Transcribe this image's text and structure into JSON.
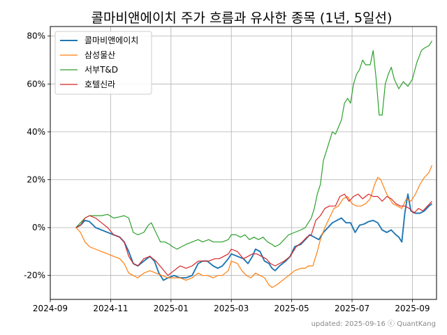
{
  "chart_data": {
    "type": "line",
    "title": "콜마비앤에이치 주가 흐름과 유사한 종목 (1년, 5일선)",
    "xlabel": "",
    "ylabel": "",
    "x_ticks": [
      "2024-09",
      "2024-11",
      "2025-01",
      "2025-03",
      "2025-05",
      "2025-07",
      "2025-09"
    ],
    "y_ticks": [
      "-20%",
      "0%",
      "20%",
      "40%",
      "60%",
      "80%"
    ],
    "ylim": [
      -30,
      84
    ],
    "xlim": [
      0,
      12.8
    ],
    "grid": true,
    "legend_position": "upper-left",
    "series": [
      {
        "name": "콜마비앤에이치",
        "color": "#1f77b4",
        "points": [
          [
            0.85,
            0
          ],
          [
            1.0,
            1
          ],
          [
            1.15,
            3
          ],
          [
            1.3,
            2.5
          ],
          [
            1.5,
            0
          ],
          [
            1.7,
            -1
          ],
          [
            1.9,
            -2
          ],
          [
            2.1,
            -3
          ],
          [
            2.3,
            -4
          ],
          [
            2.45,
            -6
          ],
          [
            2.6,
            -10
          ],
          [
            2.75,
            -15
          ],
          [
            2.9,
            -16
          ],
          [
            3.1,
            -14
          ],
          [
            3.3,
            -12
          ],
          [
            3.45,
            -14
          ],
          [
            3.6,
            -19
          ],
          [
            3.75,
            -22
          ],
          [
            3.9,
            -21
          ],
          [
            4.1,
            -20
          ],
          [
            4.3,
            -21
          ],
          [
            4.5,
            -21
          ],
          [
            4.7,
            -20
          ],
          [
            4.9,
            -15
          ],
          [
            5.05,
            -14
          ],
          [
            5.2,
            -14
          ],
          [
            5.4,
            -16
          ],
          [
            5.55,
            -17
          ],
          [
            5.7,
            -16
          ],
          [
            5.9,
            -13
          ],
          [
            6.0,
            -11
          ],
          [
            6.2,
            -12
          ],
          [
            6.4,
            -13
          ],
          [
            6.55,
            -15
          ],
          [
            6.7,
            -12
          ],
          [
            6.8,
            -9
          ],
          [
            6.95,
            -10
          ],
          [
            7.1,
            -14
          ],
          [
            7.25,
            -15
          ],
          [
            7.35,
            -17
          ],
          [
            7.45,
            -18
          ],
          [
            7.6,
            -16
          ],
          [
            7.8,
            -14
          ],
          [
            7.95,
            -12
          ],
          [
            8.1,
            -8
          ],
          [
            8.3,
            -7
          ],
          [
            8.45,
            -5
          ],
          [
            8.6,
            -3
          ],
          [
            8.75,
            -4
          ],
          [
            8.9,
            -5
          ],
          [
            9.05,
            -2
          ],
          [
            9.2,
            0
          ],
          [
            9.35,
            2
          ],
          [
            9.5,
            3
          ],
          [
            9.65,
            4
          ],
          [
            9.8,
            2
          ],
          [
            9.95,
            2
          ],
          [
            10.1,
            -2
          ],
          [
            10.25,
            1
          ],
          [
            10.4,
            1.5
          ],
          [
            10.55,
            2.5
          ],
          [
            10.7,
            3
          ],
          [
            10.85,
            2
          ],
          [
            11.0,
            -1
          ],
          [
            11.15,
            -2
          ],
          [
            11.3,
            -1
          ],
          [
            11.45,
            -3
          ],
          [
            11.55,
            -4
          ],
          [
            11.65,
            -6
          ],
          [
            11.75,
            6
          ],
          [
            11.85,
            14
          ],
          [
            11.95,
            7
          ],
          [
            12.1,
            6
          ],
          [
            12.25,
            6
          ],
          [
            12.4,
            7
          ],
          [
            12.55,
            9
          ],
          [
            12.65,
            10
          ]
        ]
      },
      {
        "name": "삼성물산",
        "color": "#ff7f0e",
        "points": [
          [
            0.85,
            0
          ],
          [
            1.0,
            -2
          ],
          [
            1.15,
            -6
          ],
          [
            1.3,
            -8
          ],
          [
            1.5,
            -9
          ],
          [
            1.7,
            -10
          ],
          [
            1.9,
            -11
          ],
          [
            2.1,
            -12
          ],
          [
            2.3,
            -13
          ],
          [
            2.45,
            -15
          ],
          [
            2.6,
            -19
          ],
          [
            2.75,
            -20
          ],
          [
            2.9,
            -21
          ],
          [
            3.1,
            -19
          ],
          [
            3.3,
            -18
          ],
          [
            3.5,
            -19
          ],
          [
            3.7,
            -20
          ],
          [
            3.9,
            -21
          ],
          [
            4.1,
            -21
          ],
          [
            4.3,
            -21
          ],
          [
            4.5,
            -22
          ],
          [
            4.7,
            -21
          ],
          [
            4.9,
            -19
          ],
          [
            5.05,
            -20
          ],
          [
            5.2,
            -20
          ],
          [
            5.4,
            -21
          ],
          [
            5.55,
            -20
          ],
          [
            5.7,
            -20
          ],
          [
            5.9,
            -18
          ],
          [
            6.0,
            -14
          ],
          [
            6.2,
            -15
          ],
          [
            6.35,
            -18
          ],
          [
            6.5,
            -20
          ],
          [
            6.65,
            -21
          ],
          [
            6.8,
            -19
          ],
          [
            6.95,
            -20
          ],
          [
            7.1,
            -21
          ],
          [
            7.25,
            -24
          ],
          [
            7.35,
            -25
          ],
          [
            7.5,
            -24
          ],
          [
            7.7,
            -22
          ],
          [
            7.9,
            -20
          ],
          [
            8.1,
            -18
          ],
          [
            8.3,
            -17
          ],
          [
            8.45,
            -17
          ],
          [
            8.55,
            -16
          ],
          [
            8.7,
            -16
          ],
          [
            8.85,
            -10
          ],
          [
            8.95,
            -5
          ],
          [
            9.1,
            0
          ],
          [
            9.25,
            4
          ],
          [
            9.4,
            8
          ],
          [
            9.55,
            9
          ],
          [
            9.7,
            12
          ],
          [
            9.85,
            13
          ],
          [
            10.0,
            10
          ],
          [
            10.15,
            9
          ],
          [
            10.3,
            9
          ],
          [
            10.45,
            10
          ],
          [
            10.6,
            12
          ],
          [
            10.75,
            18
          ],
          [
            10.85,
            21
          ],
          [
            10.95,
            20
          ],
          [
            11.05,
            17
          ],
          [
            11.15,
            14
          ],
          [
            11.25,
            12
          ],
          [
            11.35,
            10
          ],
          [
            11.5,
            9
          ],
          [
            11.65,
            8
          ],
          [
            11.8,
            12
          ],
          [
            11.95,
            11
          ],
          [
            12.1,
            14
          ],
          [
            12.25,
            18
          ],
          [
            12.4,
            21
          ],
          [
            12.55,
            23
          ],
          [
            12.65,
            26
          ]
        ]
      },
      {
        "name": "서부T&D",
        "color": "#2ca02c",
        "points": [
          [
            0.85,
            0
          ],
          [
            1.0,
            2
          ],
          [
            1.15,
            4
          ],
          [
            1.3,
            5
          ],
          [
            1.5,
            5
          ],
          [
            1.7,
            5
          ],
          [
            1.9,
            5.5
          ],
          [
            2.1,
            4
          ],
          [
            2.3,
            4.5
          ],
          [
            2.45,
            5
          ],
          [
            2.6,
            4
          ],
          [
            2.75,
            -2
          ],
          [
            2.9,
            -3
          ],
          [
            3.1,
            -2
          ],
          [
            3.25,
            1
          ],
          [
            3.35,
            2
          ],
          [
            3.5,
            -2
          ],
          [
            3.65,
            -6
          ],
          [
            3.8,
            -6
          ],
          [
            3.95,
            -7
          ],
          [
            4.05,
            -8
          ],
          [
            4.2,
            -9
          ],
          [
            4.35,
            -8
          ],
          [
            4.5,
            -7
          ],
          [
            4.7,
            -6
          ],
          [
            4.9,
            -5
          ],
          [
            5.05,
            -6
          ],
          [
            5.25,
            -5
          ],
          [
            5.4,
            -6
          ],
          [
            5.55,
            -6
          ],
          [
            5.7,
            -6
          ],
          [
            5.9,
            -5
          ],
          [
            6.0,
            -3
          ],
          [
            6.15,
            -3
          ],
          [
            6.3,
            -4
          ],
          [
            6.45,
            -3
          ],
          [
            6.6,
            -5
          ],
          [
            6.75,
            -4
          ],
          [
            6.9,
            -5
          ],
          [
            7.05,
            -4
          ],
          [
            7.2,
            -6
          ],
          [
            7.35,
            -7
          ],
          [
            7.45,
            -8
          ],
          [
            7.6,
            -7
          ],
          [
            7.75,
            -5
          ],
          [
            7.9,
            -3
          ],
          [
            8.1,
            -2
          ],
          [
            8.3,
            -1
          ],
          [
            8.45,
            0
          ],
          [
            8.55,
            2
          ],
          [
            8.65,
            4
          ],
          [
            8.75,
            8
          ],
          [
            8.85,
            14
          ],
          [
            8.95,
            18
          ],
          [
            9.05,
            28
          ],
          [
            9.15,
            32
          ],
          [
            9.25,
            36
          ],
          [
            9.35,
            40
          ],
          [
            9.45,
            39
          ],
          [
            9.55,
            42
          ],
          [
            9.65,
            45
          ],
          [
            9.75,
            52
          ],
          [
            9.85,
            54
          ],
          [
            9.95,
            52
          ],
          [
            10.05,
            60
          ],
          [
            10.15,
            64
          ],
          [
            10.25,
            66
          ],
          [
            10.35,
            70
          ],
          [
            10.45,
            68
          ],
          [
            10.6,
            68
          ],
          [
            10.7,
            74
          ],
          [
            10.8,
            62
          ],
          [
            10.9,
            47
          ],
          [
            11.0,
            47
          ],
          [
            11.1,
            60
          ],
          [
            11.2,
            64
          ],
          [
            11.3,
            67
          ],
          [
            11.4,
            62
          ],
          [
            11.55,
            58
          ],
          [
            11.7,
            61
          ],
          [
            11.85,
            59
          ],
          [
            12.0,
            62
          ],
          [
            12.15,
            69
          ],
          [
            12.3,
            74
          ],
          [
            12.4,
            75
          ],
          [
            12.55,
            76
          ],
          [
            12.65,
            78
          ]
        ]
      },
      {
        "name": "호텔신라",
        "color": "#d62728",
        "points": [
          [
            0.85,
            0
          ],
          [
            1.0,
            1
          ],
          [
            1.15,
            4
          ],
          [
            1.3,
            5
          ],
          [
            1.5,
            4
          ],
          [
            1.7,
            2
          ],
          [
            1.9,
            0
          ],
          [
            2.1,
            -3
          ],
          [
            2.3,
            -4
          ],
          [
            2.45,
            -6
          ],
          [
            2.6,
            -12
          ],
          [
            2.75,
            -15
          ],
          [
            2.9,
            -16
          ],
          [
            3.1,
            -13
          ],
          [
            3.3,
            -12
          ],
          [
            3.5,
            -14
          ],
          [
            3.7,
            -17
          ],
          [
            3.9,
            -20
          ],
          [
            4.1,
            -18
          ],
          [
            4.3,
            -16
          ],
          [
            4.5,
            -17
          ],
          [
            4.7,
            -16
          ],
          [
            4.9,
            -14
          ],
          [
            5.05,
            -14
          ],
          [
            5.25,
            -14
          ],
          [
            5.45,
            -13
          ],
          [
            5.6,
            -13
          ],
          [
            5.75,
            -12
          ],
          [
            5.9,
            -11
          ],
          [
            6.0,
            -9
          ],
          [
            6.2,
            -10
          ],
          [
            6.4,
            -13
          ],
          [
            6.55,
            -12
          ],
          [
            6.7,
            -11
          ],
          [
            6.85,
            -11
          ],
          [
            7.0,
            -12
          ],
          [
            7.15,
            -13
          ],
          [
            7.3,
            -15
          ],
          [
            7.45,
            -16
          ],
          [
            7.6,
            -15
          ],
          [
            7.75,
            -14
          ],
          [
            7.95,
            -12
          ],
          [
            8.15,
            -8
          ],
          [
            8.35,
            -6
          ],
          [
            8.5,
            -4
          ],
          [
            8.65,
            -3
          ],
          [
            8.8,
            3
          ],
          [
            8.95,
            5
          ],
          [
            9.1,
            8
          ],
          [
            9.25,
            9
          ],
          [
            9.45,
            9
          ],
          [
            9.6,
            13
          ],
          [
            9.75,
            14
          ],
          [
            9.9,
            11
          ],
          [
            10.05,
            13
          ],
          [
            10.2,
            14
          ],
          [
            10.35,
            12
          ],
          [
            10.55,
            14
          ],
          [
            10.7,
            13
          ],
          [
            10.85,
            13
          ],
          [
            11.0,
            11
          ],
          [
            11.15,
            13
          ],
          [
            11.3,
            12
          ],
          [
            11.45,
            10
          ],
          [
            11.6,
            9
          ],
          [
            11.75,
            9
          ],
          [
            11.9,
            8
          ],
          [
            12.05,
            6
          ],
          [
            12.2,
            8
          ],
          [
            12.35,
            7
          ],
          [
            12.5,
            9
          ],
          [
            12.65,
            11
          ]
        ]
      }
    ]
  },
  "footer": "updated: 2025-09-16 ⓒ QuantKang"
}
